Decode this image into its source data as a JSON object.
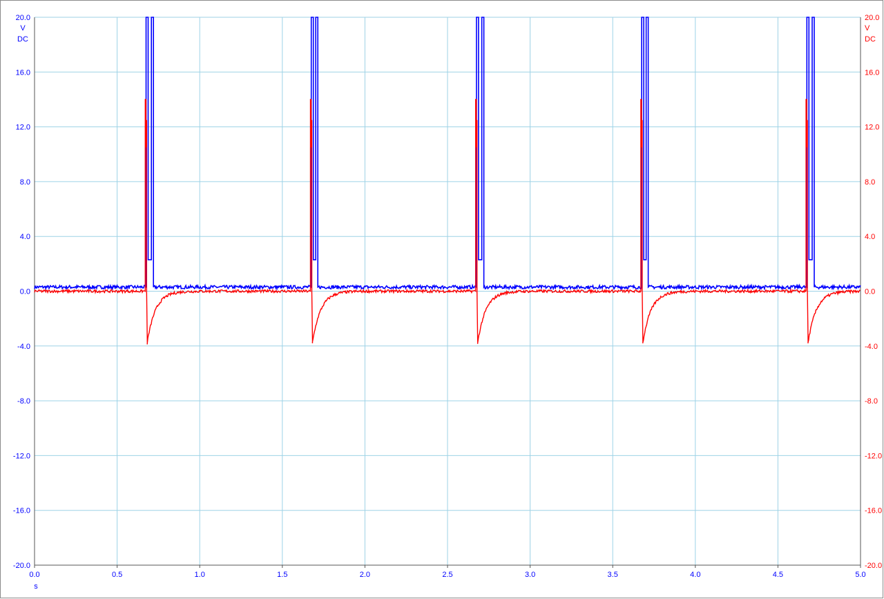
{
  "chart_data": {
    "type": "line",
    "title": "",
    "xlabel": "s",
    "x_ticks": [
      "0.0",
      "0.5",
      "1.0",
      "1.5",
      "2.0",
      "2.5",
      "3.0",
      "3.5",
      "4.0",
      "4.5",
      "5.0"
    ],
    "xlim": [
      0.0,
      5.0
    ],
    "left_axis": {
      "unit": "V",
      "coupling": "DC",
      "ylim": [
        -20.0,
        20.0
      ],
      "ticks": [
        "20.0",
        "16.0",
        "12.0",
        "8.0",
        "4.0",
        "0.0",
        "-4.0",
        "-8.0",
        "-12.0",
        "-16.0",
        "-20.0"
      ],
      "color": "#0000ff"
    },
    "right_axis": {
      "unit": "V",
      "coupling": "DC",
      "ylim": [
        -20.0,
        20.0
      ],
      "ticks": [
        "20.0",
        "16.0",
        "12.0",
        "8.0",
        "4.0",
        "0.0",
        "-4.0",
        "-8.0",
        "-12.0",
        "-16.0",
        "-20.0"
      ],
      "color": "#ff0000"
    },
    "grid": true,
    "grid_color": "#9dd2e6",
    "series": [
      {
        "axis": "left",
        "color": "#0000ff",
        "baseline_v": 0.3,
        "pulse_high_v": 20.0,
        "pulses": [
          {
            "start_s": 0.675,
            "end_s": 0.72
          },
          {
            "start_s": 1.675,
            "end_s": 1.715
          },
          {
            "start_s": 2.675,
            "end_s": 2.72
          },
          {
            "start_s": 3.675,
            "end_s": 3.715
          },
          {
            "start_s": 4.675,
            "end_s": 4.72
          }
        ]
      },
      {
        "axis": "right",
        "color": "#ff0000",
        "baseline_v": 0.0,
        "spike_high_v": 14.0,
        "spike_mid_v": 12.5,
        "undershoot_v": -3.8,
        "decay_tau_s": 0.05,
        "events_s": [
          0.67,
          1.67,
          2.67,
          3.67,
          4.67
        ]
      }
    ]
  }
}
